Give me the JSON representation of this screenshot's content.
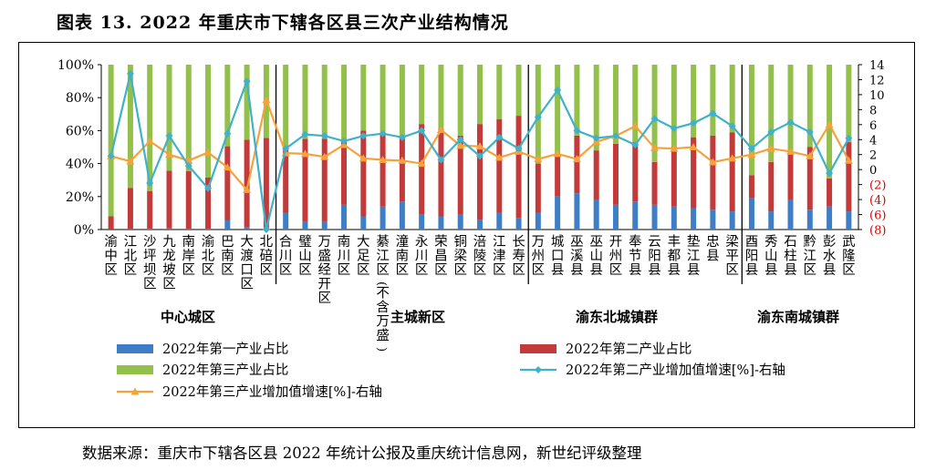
{
  "title": "图表 13.   2022 年重庆市下辖各区县三次产业结构情况",
  "source": "数据来源：重庆市下辖各区县 2022 年统计公报及重庆统计信息网，新世纪评级整理",
  "colors": {
    "primary": "#3d7ec6",
    "secondary": "#c23a3a",
    "tertiary": "#93c04a",
    "line_secondary": "#3fb1c9",
    "line_tertiary": "#f5a23a",
    "negative_axis_text": "#e00000"
  },
  "chart_data": {
    "type": "bar",
    "stacked": true,
    "categories": [
      "渝中区",
      "江北区",
      "沙坪坝区",
      "九龙坡区",
      "南岸区",
      "渝北区",
      "巴南区",
      "大渡口区",
      "北碚区",
      "合川区",
      "璧山区",
      "万盛经开区",
      "南川区",
      "大足区",
      "綦江区（不含万盛）",
      "潼南区",
      "永川区",
      "荣昌区",
      "铜梁区",
      "涪陵区",
      "江津区",
      "长寿区",
      "万州区",
      "城口县",
      "巫溪县",
      "巫山县",
      "开州区",
      "奉节县",
      "云阳县",
      "丰都县",
      "垫江县",
      "忠县",
      "梁平区",
      "酉阳县",
      "秀山县",
      "石柱县",
      "黔江区",
      "彭水县",
      "武隆区"
    ],
    "axis_labels": [
      "渝中区",
      "江北区",
      "沙坪坝区",
      "九龙坡区",
      "南岸区",
      "渝北区",
      "巴南区",
      "大渡口区",
      "北碚区",
      "合川区",
      "璧山区",
      "万盛经开区",
      "南川区",
      "大足区",
      "綦江区(不含万盛)",
      "潼南区",
      "永川区",
      "荣昌区",
      "铜梁区",
      "涪陵区",
      "江津区",
      "长寿区",
      "万州区",
      "城口县",
      "巫溪县",
      "巫山县",
      "开州区",
      "奉节县",
      "云阳县",
      "丰都县",
      "垫江县",
      "忠县",
      "梁平区",
      "酉阳县",
      "秀山县",
      "石柱县",
      "黔江区",
      "彭水县",
      "武隆区"
    ],
    "groups": [
      {
        "name": "中心城区",
        "count": 9
      },
      {
        "name": "主城新区",
        "count": 13
      },
      {
        "name": "渝东北城镇群",
        "count": 11
      },
      {
        "name": "渝东南城镇群",
        "count": 6
      }
    ],
    "series": [
      {
        "name": "2022年第一产业占比",
        "axis": "left",
        "kind": "bar",
        "values": [
          0,
          0.3,
          0.4,
          0.7,
          0.5,
          0.5,
          5.5,
          1.5,
          1.5,
          10,
          5,
          5,
          15,
          8,
          14,
          17,
          9,
          8,
          9,
          6,
          10,
          7,
          10,
          20,
          22,
          18,
          15,
          17,
          15,
          14,
          13,
          12,
          11,
          19,
          11,
          18,
          12,
          14,
          11
        ]
      },
      {
        "name": "2022年第二产业占比",
        "axis": "left",
        "kind": "bar",
        "values": [
          8,
          25,
          23,
          35,
          35,
          31,
          45,
          53,
          54,
          40,
          50,
          50,
          39,
          52,
          44,
          39,
          55,
          53,
          48,
          58,
          57,
          62,
          30,
          25,
          35,
          30,
          37,
          36,
          26,
          36,
          43,
          45,
          48,
          14,
          30,
          29,
          38,
          17,
          42
        ]
      },
      {
        "name": "2022年第三产业占比",
        "axis": "right_none",
        "kind": "bar",
        "values": [
          92,
          74.7,
          76.6,
          64.3,
          64.5,
          68.5,
          49.5,
          45.5,
          44.5,
          50,
          45,
          45,
          46,
          40,
          42,
          44,
          36,
          39,
          43,
          36,
          33,
          31,
          60,
          55,
          43,
          52,
          48,
          47,
          59,
          50,
          44,
          43,
          41,
          67,
          59,
          53,
          50,
          69,
          47
        ]
      },
      {
        "name": "2022年第二产业增加值增速[%]-右轴",
        "axis": "right",
        "kind": "line",
        "values": [
          1.8,
          12.8,
          -1.8,
          4.5,
          0.5,
          -2.5,
          4.8,
          11.8,
          -8.0,
          2.8,
          4.7,
          4.5,
          3.8,
          4.5,
          4.8,
          4.3,
          5.2,
          1.3,
          4.0,
          1.8,
          4.3,
          2.8,
          7.0,
          10.6,
          5.2,
          4.2,
          4.5,
          3.3,
          6.8,
          5.5,
          6.2,
          7.5,
          5.8,
          2.8,
          5.0,
          6.3,
          5.0,
          -0.5,
          4.2
        ]
      },
      {
        "name": "2022年第三产业增加值增速[%]-右轴",
        "axis": "right",
        "kind": "line",
        "values": [
          1.8,
          1.1,
          3.8,
          2.0,
          1.2,
          2.3,
          0.3,
          -2.7,
          9.3,
          2.2,
          2.1,
          1.7,
          3.3,
          1.5,
          1.3,
          1.2,
          0.8,
          5.3,
          3.2,
          3.1,
          1.6,
          2.4,
          1.4,
          2.1,
          1.4,
          3.7,
          4.5,
          5.8,
          2.9,
          2.8,
          3.0,
          1.0,
          1.5,
          2.0,
          2.8,
          2.4,
          1.8,
          6.0,
          1.2
        ]
      }
    ],
    "left_axis": {
      "ylim": [
        0,
        100
      ],
      "ticks": [
        "0%",
        "20%",
        "40%",
        "60%",
        "80%",
        "100%"
      ]
    },
    "right_axis": {
      "ylim": [
        -8,
        14
      ],
      "ticks": [
        "(8)",
        "(6)",
        "(4)",
        "(2)",
        "0",
        "2",
        "4",
        "6",
        "8",
        "10",
        "12",
        "14"
      ]
    },
    "legend_position": "bottom",
    "grid": false
  }
}
